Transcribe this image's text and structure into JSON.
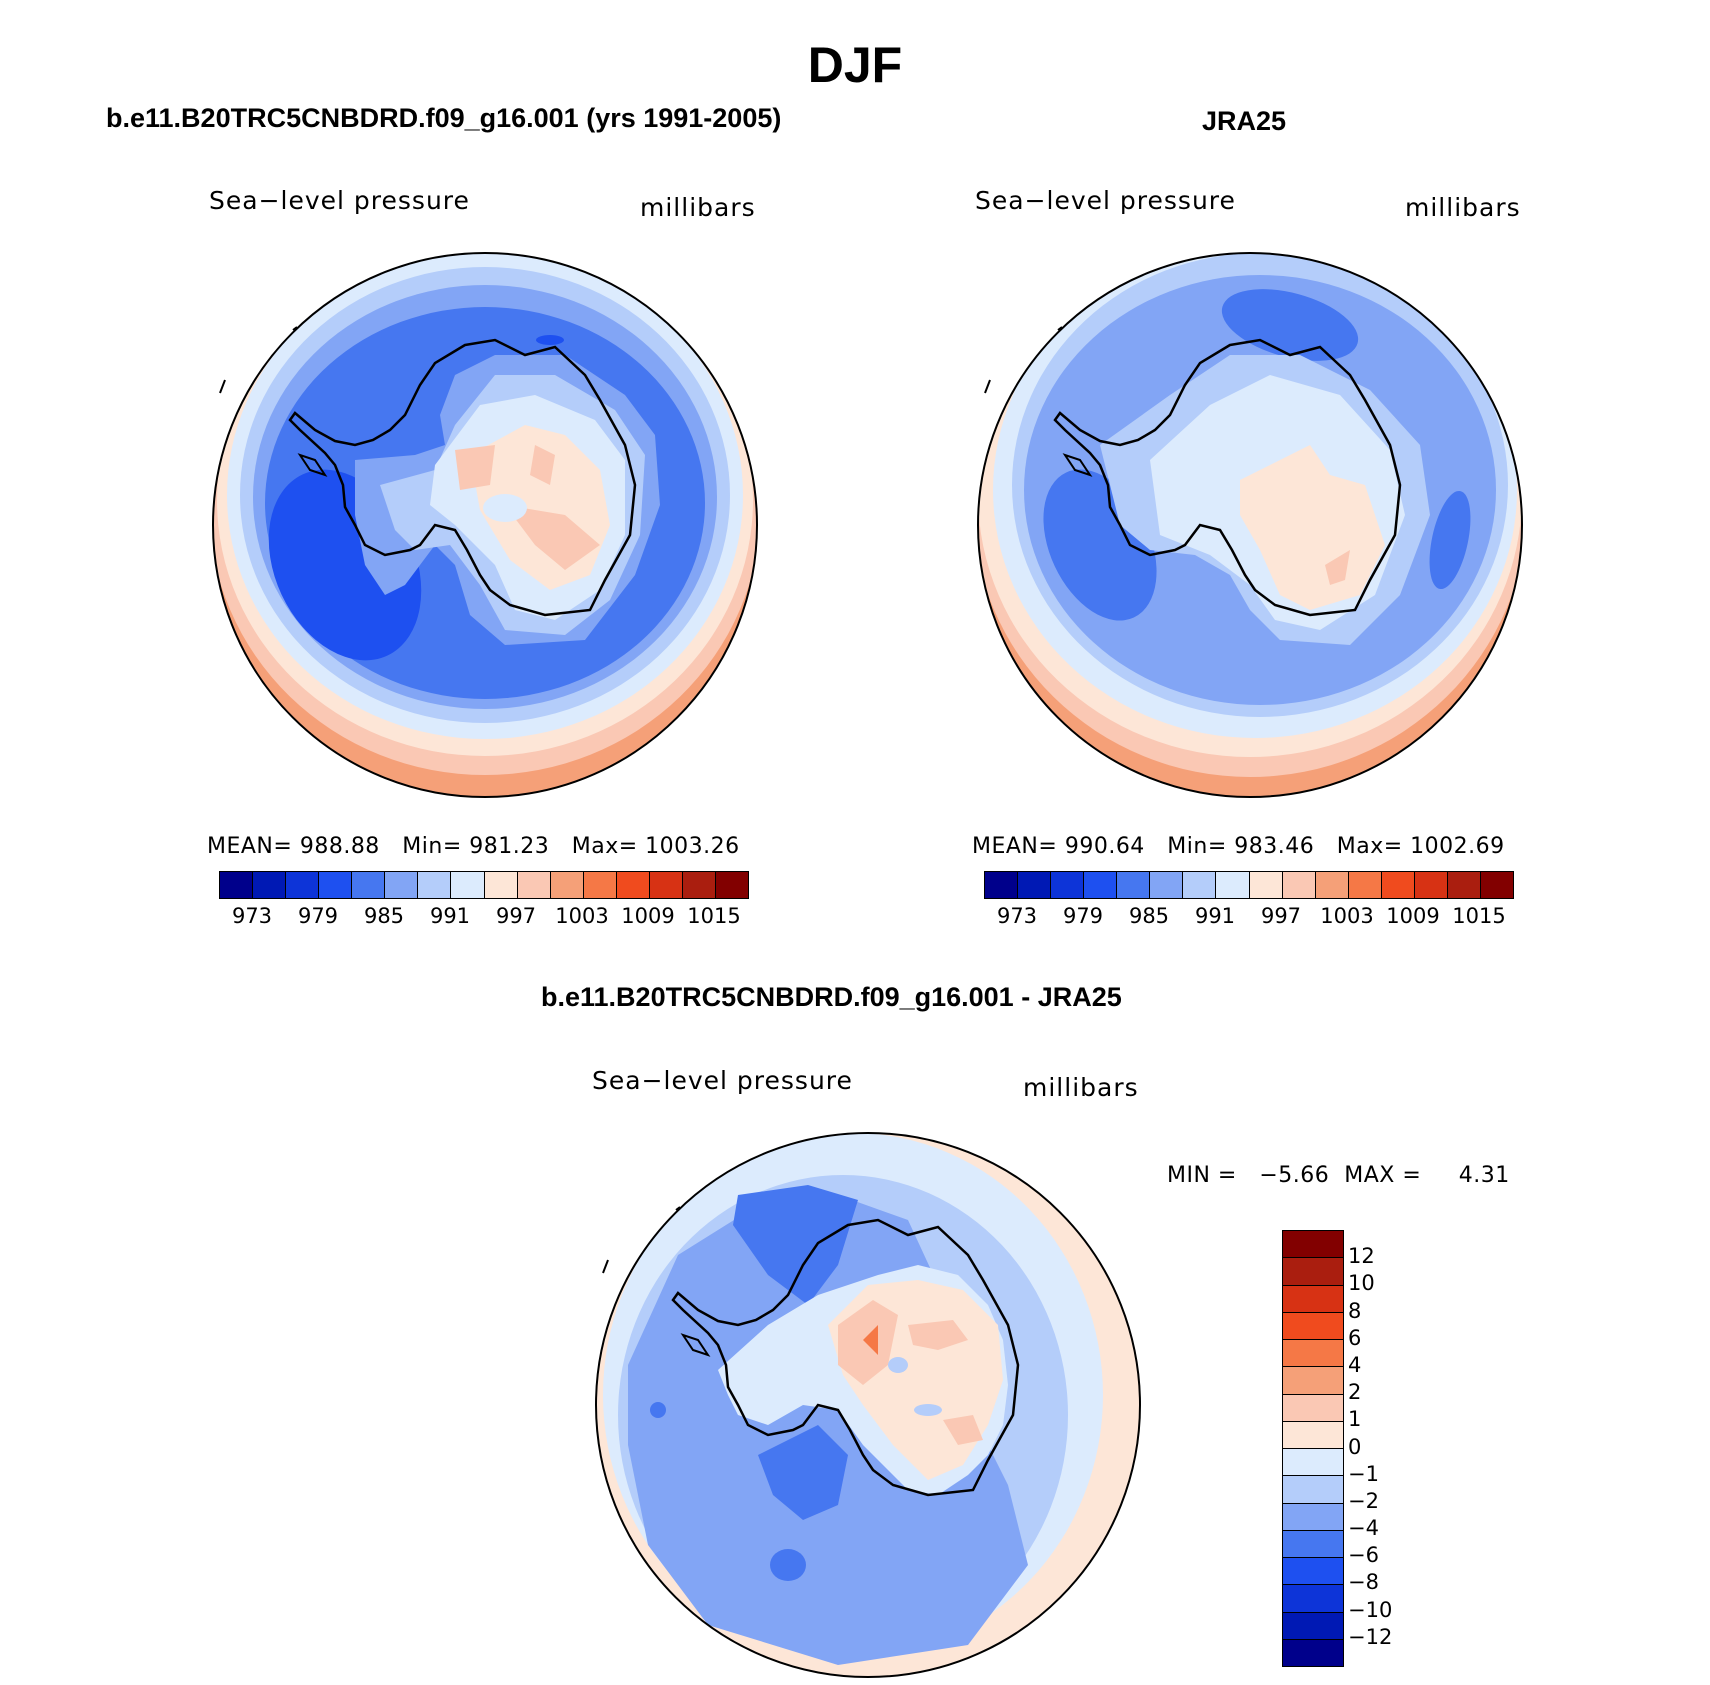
{
  "title": "DJF",
  "panels": [
    {
      "title": "b.e11.B20TRC5CNBDRD.f09_g16.001 (yrs 1991-2005)",
      "variable": "Sea−level pressure",
      "units": "millibars",
      "stats": {
        "mean_label": "MEAN=",
        "mean": "988.88",
        "min_label": "Min=",
        "min": "981.23",
        "max_label": "Max=",
        "max": "1003.26"
      }
    },
    {
      "title": "JRA25",
      "variable": "Sea−level pressure",
      "units": "millibars",
      "stats": {
        "mean_label": "MEAN=",
        "mean": "990.64",
        "min_label": "Min=",
        "min": "983.46",
        "max_label": "Max=",
        "max": "1002.69"
      }
    },
    {
      "title": "b.e11.B20TRC5CNBDRD.f09_g16.001 - JRA25",
      "variable": "Sea−level pressure",
      "units": "millibars",
      "stats": {
        "min_label": "MIN =",
        "min": "−5.66",
        "max_label": "MAX =",
        "max": "4.31"
      }
    }
  ],
  "colorbar_top": {
    "colors": [
      "#00008b",
      "#0019b4",
      "#0d34d8",
      "#1e50f0",
      "#4677f0",
      "#82a5f5",
      "#b4cdfa",
      "#dcebfd",
      "#fde6d7",
      "#fac8b4",
      "#f5a078",
      "#f57846",
      "#f04b1e",
      "#d73214",
      "#aa1e0f",
      "#820000"
    ],
    "labels": [
      "973",
      "979",
      "985",
      "991",
      "997",
      "1003",
      "1009",
      "1015"
    ]
  },
  "colorbar_diff": {
    "colors": [
      "#820000",
      "#aa1e0f",
      "#d73214",
      "#f04b1e",
      "#f57846",
      "#f5a078",
      "#fac8b4",
      "#fde6d7",
      "#dcebfd",
      "#b4cdfa",
      "#82a5f5",
      "#4677f0",
      "#1e50f0",
      "#0d34d8",
      "#0019b4",
      "#00008b"
    ],
    "labels": [
      "12",
      "10",
      "8",
      "6",
      "4",
      "2",
      "1",
      "0",
      "−1",
      "−2",
      "−4",
      "−6",
      "−8",
      "−10",
      "−12"
    ]
  },
  "icons": {
    "map_1": "polar-stereographic-map",
    "map_2": "polar-stereographic-map",
    "map_3": "polar-stereographic-map"
  }
}
